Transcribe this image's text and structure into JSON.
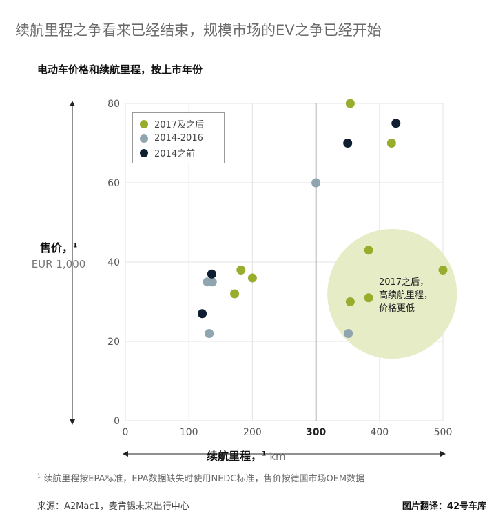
{
  "headline": "续航里程之争看来已经结束，规模市场的EV之争已经开始",
  "chart_data": {
    "type": "scatter",
    "title": "电动车价格和续航里程，按上市年份",
    "xlabel": "续航里程，",
    "xlabel_sup": "1",
    "xunit": "km",
    "ylabel": "售价，",
    "ylabel_sup": "1",
    "yunit": "EUR 1,000",
    "xlim": [
      0,
      500
    ],
    "ylim": [
      0,
      80
    ],
    "xticks": [
      "0",
      "100",
      "200",
      "300",
      "400",
      "500"
    ],
    "yticks": [
      "0",
      "20",
      "40",
      "60",
      "80"
    ],
    "reference_line_x": 300,
    "legend_position": "top-left",
    "series": [
      {
        "name": "2017及之后",
        "color": "#97ad2c",
        "points": [
          [
            354,
            80
          ],
          [
            419,
            70
          ],
          [
            383,
            43
          ],
          [
            182,
            38
          ],
          [
            200,
            36
          ],
          [
            172,
            32
          ],
          [
            500,
            38
          ],
          [
            354,
            30
          ],
          [
            383,
            31
          ]
        ]
      },
      {
        "name": "2014-2016",
        "color": "#8fa6b0",
        "points": [
          [
            300,
            60
          ],
          [
            129,
            35
          ],
          [
            137,
            35
          ],
          [
            132,
            22
          ],
          [
            351,
            22
          ]
        ]
      },
      {
        "name": "2014之前",
        "color": "#0f1e30",
        "points": [
          [
            426,
            75
          ],
          [
            350,
            70
          ],
          [
            136,
            37
          ],
          [
            121,
            27
          ]
        ]
      }
    ],
    "highlight": {
      "cx": 420,
      "cy": 32,
      "r_x": 102,
      "color": "#e6ecc6"
    },
    "annotation": [
      "2017之后，",
      "高续航里程，",
      "价格更低"
    ]
  },
  "footnote": {
    "sup": "1",
    "text": "续航里程按EPA标准，EPA数据缺失时使用NEDC标准，售价按德国市场OEM数据"
  },
  "source": "来源：A2Mac1，麦肯锡未来出行中心",
  "translation": "图片翻译：42号车库"
}
